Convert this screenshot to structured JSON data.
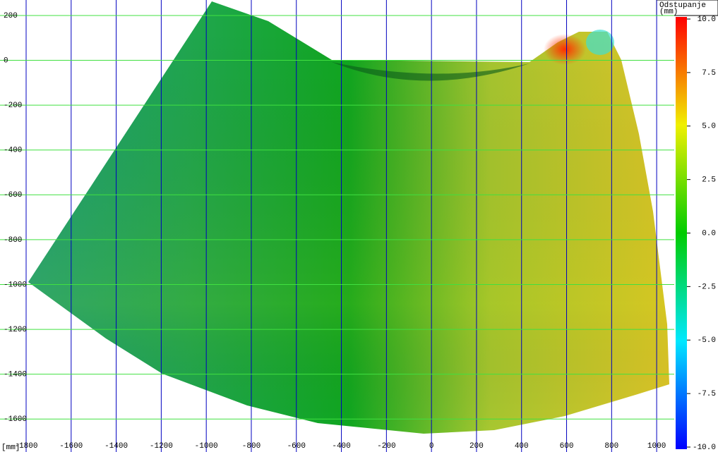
{
  "chart_data": {
    "type": "surface",
    "x_label": "[mm]",
    "colorbar_title": [
      "Odstupanje",
      "(mm)"
    ],
    "xlim": [
      -1916,
      1078
    ],
    "ylim": [
      -1747,
      269
    ],
    "xticks": [
      -1800,
      -1600,
      -1400,
      -1200,
      -1000,
      -800,
      -600,
      -400,
      -200,
      0,
      200,
      400,
      600,
      800,
      1000
    ],
    "yticks": [
      200,
      0,
      -200,
      -400,
      -600,
      -800,
      -1000,
      -1200,
      -1400,
      -1600
    ],
    "x_grid_color": "#0000c0",
    "y_grid_color": "#40e040",
    "colorbar": {
      "lim": [
        -10,
        10
      ],
      "ticks": [
        {
          "value": 10,
          "label": "10.0"
        },
        7.5,
        {
          "value": 5,
          "label": "5.0"
        },
        2.5,
        {
          "value": 0,
          "label": "0.0"
        },
        -2.5,
        {
          "value": -5,
          "label": "-5.0"
        },
        -7.5,
        {
          "value": -10,
          "label": "-10.0"
        }
      ],
      "colors": [
        "#0000ff",
        "#00e8ff",
        "#00cc00",
        "#f0f000",
        "#ff0000"
      ]
    }
  }
}
